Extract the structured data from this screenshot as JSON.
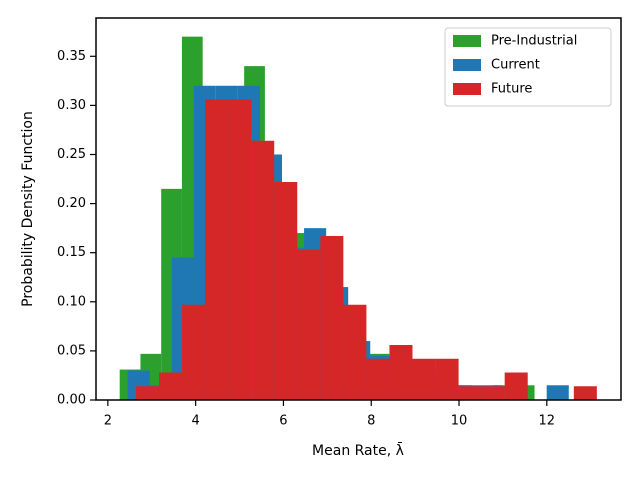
{
  "chart_data": {
    "type": "histogram",
    "xlabel": "Mean Rate, λ̄",
    "ylabel": "Probability Density Function",
    "xlim": [
      1.73,
      13.69
    ],
    "ylim": [
      0,
      0.389
    ],
    "xticks": [
      2,
      4,
      6,
      8,
      10,
      12
    ],
    "yticks": [
      {
        "value": 0,
        "label": "0.00"
      },
      {
        "value": 0.05,
        "label": "0.05"
      },
      {
        "value": 0.1,
        "label": "0.10"
      },
      {
        "value": 0.15,
        "label": "0.15"
      },
      {
        "value": 0.2,
        "label": "0.20"
      },
      {
        "value": 0.25,
        "label": "0.25"
      },
      {
        "value": 0.3,
        "label": "0.30"
      },
      {
        "value": 0.35,
        "label": "0.35"
      }
    ],
    "legend": "upper right",
    "series": [
      {
        "name": "Pre-Industrial",
        "color": "#2ca02c",
        "bins": [
          2.27,
          2.7425,
          3.215,
          3.6875,
          4.16,
          4.6325,
          5.105,
          5.5775,
          6.05,
          6.5225,
          6.995,
          7.4675,
          7.94,
          8.4125,
          8.885,
          9.3575,
          9.83,
          10.3025,
          10.775,
          11.2475,
          11.72
        ],
        "values": [
          0.031,
          0.047,
          0.215,
          0.37,
          0.3,
          0.3,
          0.34,
          0.22,
          0.17,
          0.15,
          0.11,
          0.05,
          0.047,
          0.04,
          0.03,
          0.02,
          0.015,
          0,
          0.015,
          0.015
        ]
      },
      {
        "name": "Current",
        "color": "#1f77b4",
        "bins": [
          2.45,
          2.9525,
          3.455,
          3.9575,
          4.46,
          4.9625,
          5.465,
          5.9675,
          6.47,
          6.9725,
          7.475,
          7.9775,
          8.48,
          8.9825,
          9.485,
          9.9875,
          10.49,
          10.9925,
          11.495,
          11.9975,
          12.5
        ],
        "values": [
          0.03,
          0.015,
          0.145,
          0.32,
          0.32,
          0.32,
          0.25,
          0.155,
          0.175,
          0.115,
          0.06,
          0.045,
          0.03,
          0.03,
          0.015,
          0.015,
          0.015,
          0,
          0,
          0.015
        ]
      },
      {
        "name": "Future",
        "color": "#d62728",
        "bins": [
          2.64,
          3.165,
          3.69,
          4.215,
          4.74,
          5.265,
          5.79,
          6.315,
          6.84,
          7.365,
          7.89,
          8.415,
          8.94,
          9.465,
          9.99,
          10.515,
          11.04,
          11.565,
          12.09,
          12.615,
          13.14
        ],
        "values": [
          0.014,
          0.028,
          0.097,
          0.306,
          0.306,
          0.264,
          0.222,
          0.153,
          0.167,
          0.097,
          0.042,
          0.056,
          0.042,
          0.042,
          0.014,
          0.014,
          0.028,
          0,
          0,
          0.014
        ]
      }
    ]
  }
}
